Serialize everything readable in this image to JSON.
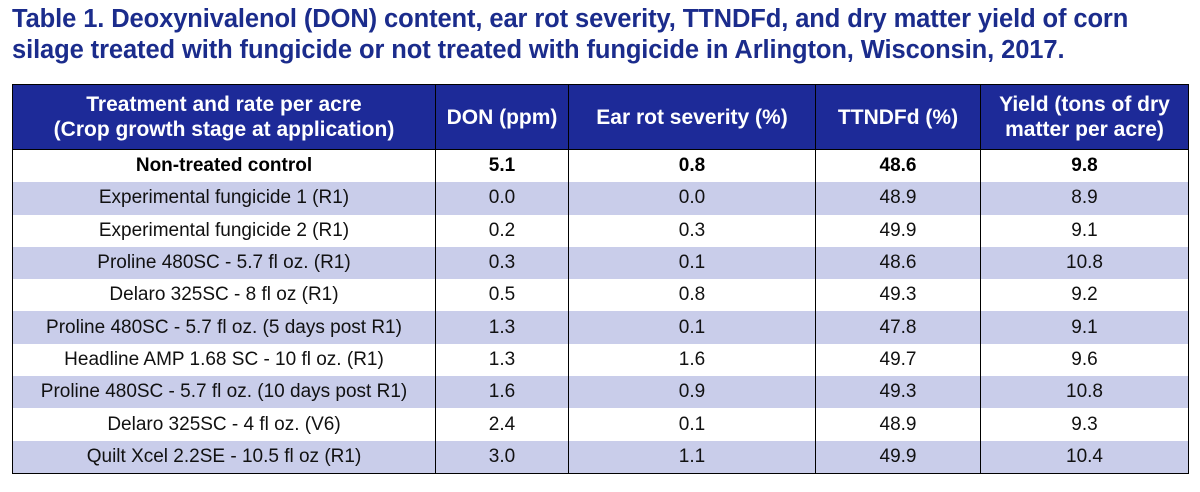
{
  "caption": {
    "line1": "Table 1.  Deoxynivalenol (DON) content, ear rot severity, TTNDFd, and dry matter yield of corn",
    "line2": "silage treated with fungicide or not treated with fungicide in Arlington, Wisconsin, 2017."
  },
  "header": {
    "treatment_line1": "Treatment and rate per acre",
    "treatment_line2": "(Crop growth stage at application)",
    "don": "DON (ppm)",
    "ear_rot": "Ear rot severity (%)",
    "ttndfd": "TTNDFd (%)",
    "yield_line1": "Yield (tons of dry",
    "yield_line2": "matter per acre)"
  },
  "rows": [
    {
      "treatment": "Non-treated control",
      "don": "5.1",
      "ear_rot": "0.8",
      "ttndfd": "48.6",
      "yield": "9.8"
    },
    {
      "treatment": "Experimental fungicide 1 (R1)",
      "don": "0.0",
      "ear_rot": "0.0",
      "ttndfd": "48.9",
      "yield": "8.9"
    },
    {
      "treatment": "Experimental fungicide 2 (R1)",
      "don": "0.2",
      "ear_rot": "0.3",
      "ttndfd": "49.9",
      "yield": "9.1"
    },
    {
      "treatment": "Proline 480SC - 5.7 fl oz. (R1)",
      "don": "0.3",
      "ear_rot": "0.1",
      "ttndfd": "48.6",
      "yield": "10.8"
    },
    {
      "treatment": "Delaro 325SC - 8 fl oz (R1)",
      "don": "0.5",
      "ear_rot": "0.8",
      "ttndfd": "49.3",
      "yield": "9.2"
    },
    {
      "treatment": "Proline 480SC - 5.7 fl oz. (5 days post R1)",
      "don": "1.3",
      "ear_rot": "0.1",
      "ttndfd": "47.8",
      "yield": "9.1"
    },
    {
      "treatment": "Headline AMP 1.68 SC - 10 fl oz. (R1)",
      "don": "1.3",
      "ear_rot": "1.6",
      "ttndfd": "49.7",
      "yield": "9.6"
    },
    {
      "treatment": "Proline 480SC - 5.7 fl oz. (10 days post R1)",
      "don": "1.6",
      "ear_rot": "0.9",
      "ttndfd": "49.3",
      "yield": "10.8"
    },
    {
      "treatment": "Delaro 325SC - 4 fl oz. (V6)",
      "don": "2.4",
      "ear_rot": "0.1",
      "ttndfd": "48.9",
      "yield": "9.3"
    },
    {
      "treatment": "Quilt Xcel 2.2SE - 10.5 fl oz (R1)",
      "don": "3.0",
      "ear_rot": "1.1",
      "ttndfd": "49.9",
      "yield": "10.4"
    }
  ],
  "colors": {
    "caption_text": "#1b2c8c",
    "header_bg": "#1d2a98",
    "header_text": "#ffffff",
    "band_row_bg": "#c9cdea",
    "border": "#000000"
  }
}
